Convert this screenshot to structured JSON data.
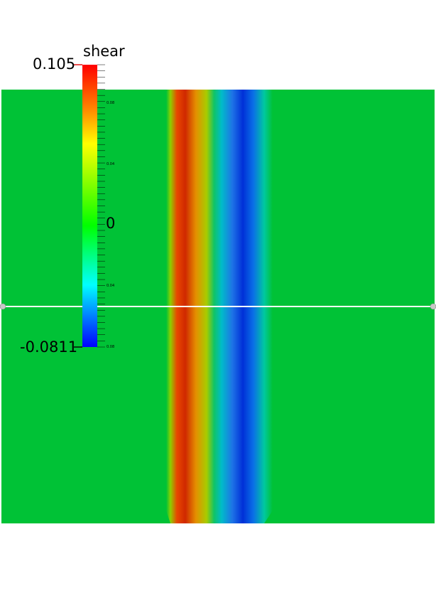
{
  "colorbar": {
    "title": "shear",
    "max_label": "0.105",
    "mid_label": "0",
    "min_label": "-0.0811",
    "minor_labels": [
      "0.08",
      "0.04",
      "0.04",
      "0.08"
    ],
    "range": [
      -0.0811,
      0.105
    ],
    "colors": [
      "#0000ff",
      "#00ffff",
      "#00ff00",
      "#ffff00",
      "#ff0000"
    ]
  },
  "field": {
    "background_color": "#00c236",
    "bands": [
      {
        "kind": "positive-shear",
        "peak_color": "#d42000"
      },
      {
        "kind": "negative-shear",
        "peak_color": "#0030d8"
      }
    ]
  },
  "probe_line": {
    "color": "#ffffff",
    "handle_color": "#c8c8c8"
  }
}
